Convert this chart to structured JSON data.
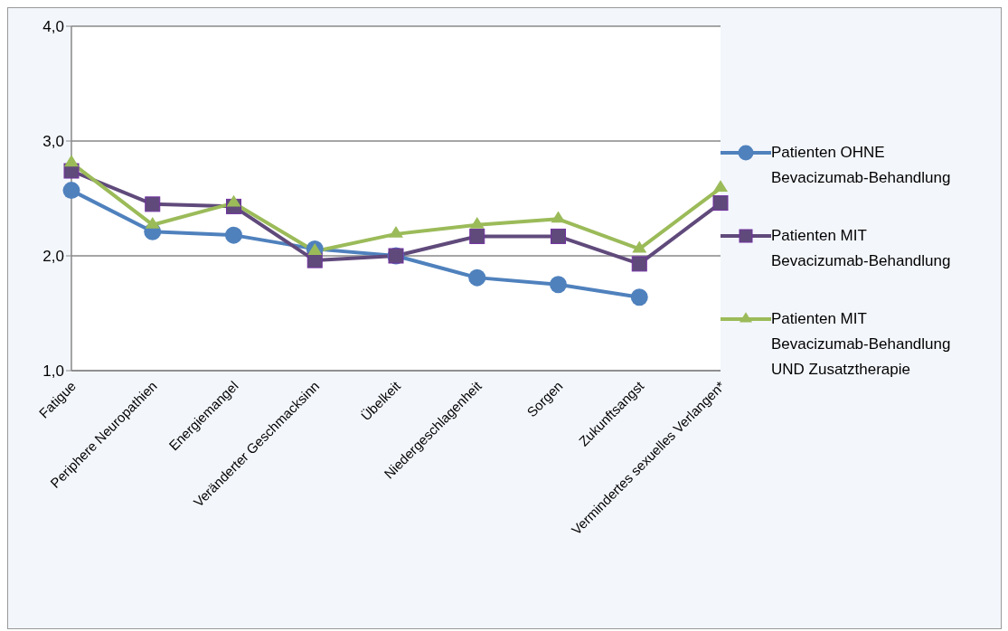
{
  "chart_data": {
    "type": "line",
    "categories": [
      "Fatigue",
      "Periphere Neuropathien",
      "Energiemangel",
      "Veränderter Geschmacksinn",
      "Übelkeit",
      "Niedergeschlagenheit",
      "Sorgen",
      "Zukunftsangst",
      "Vermindertes sexuelles Verlangen*"
    ],
    "series": [
      {
        "name": "Patienten OHNE Bevacizumab-Behandlung",
        "color": "#4f81bd",
        "marker": "circle",
        "values": [
          2.57,
          2.21,
          2.18,
          2.06,
          2.0,
          1.81,
          1.75,
          1.64,
          null
        ]
      },
      {
        "name": "Patienten MIT Bevacizumab-Behandlung",
        "color": "#604a7b",
        "marker": "square",
        "values": [
          2.74,
          2.45,
          2.43,
          1.96,
          2.0,
          2.17,
          2.17,
          1.93,
          2.46
        ]
      },
      {
        "name": "Patienten MIT Bevacizumab-Behandlung UND Zusatztherapie",
        "color": "#9bbb59",
        "marker": "triangle",
        "values": [
          2.81,
          2.27,
          2.46,
          2.04,
          2.19,
          2.27,
          2.32,
          2.06,
          2.59
        ]
      }
    ],
    "ylim": [
      1,
      4
    ],
    "yticks": [
      {
        "value": 1,
        "label": "1,0"
      },
      {
        "value": 2,
        "label": "2,0"
      },
      {
        "value": 3,
        "label": "3,0"
      },
      {
        "value": 4,
        "label": "4,0"
      }
    ],
    "grid": "y",
    "legend": "right"
  }
}
